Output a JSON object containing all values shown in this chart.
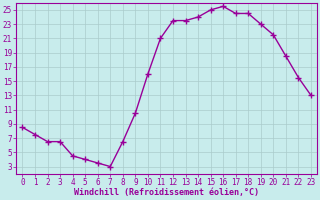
{
  "x": [
    0,
    1,
    2,
    3,
    4,
    5,
    6,
    7,
    8,
    9,
    10,
    11,
    12,
    13,
    14,
    15,
    16,
    17,
    18,
    19,
    20,
    21,
    22,
    23
  ],
  "y": [
    8.5,
    7.5,
    6.5,
    6.5,
    4.5,
    4.0,
    3.5,
    3.0,
    6.5,
    10.5,
    16.0,
    21.0,
    23.5,
    23.5,
    24.0,
    25.0,
    25.5,
    24.5,
    24.5,
    23.0,
    21.5,
    18.5,
    15.5,
    13.0
  ],
  "line_color": "#990099",
  "marker": "+",
  "marker_size": 4,
  "line_width": 1.0,
  "bg_color": "#c8ecec",
  "grid_color": "#aacccc",
  "xlabel": "Windchill (Refroidissement éolien,°C)",
  "xlim": [
    -0.5,
    23.5
  ],
  "ylim": [
    2,
    26
  ],
  "yticks": [
    3,
    5,
    7,
    9,
    11,
    13,
    15,
    17,
    19,
    21,
    23,
    25
  ],
  "xticks": [
    0,
    1,
    2,
    3,
    4,
    5,
    6,
    7,
    8,
    9,
    10,
    11,
    12,
    13,
    14,
    15,
    16,
    17,
    18,
    19,
    20,
    21,
    22,
    23
  ],
  "tick_label_color": "#990099",
  "spine_color": "#990099",
  "xlabel_fg": "#990099",
  "xlabel_fontsize": 6.0,
  "tick_fontsize": 5.5
}
